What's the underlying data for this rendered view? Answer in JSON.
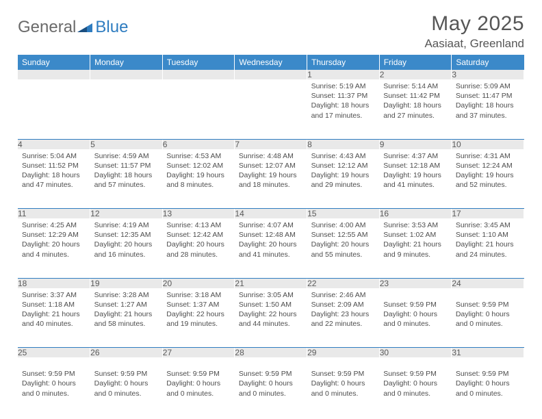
{
  "brand": {
    "general": "General",
    "blue": "Blue"
  },
  "title": "May 2025",
  "location": "Aasiaat, Greenland",
  "colors": {
    "header_bg": "#3b89c9",
    "header_text": "#ffffff",
    "rule": "#2e7cc0",
    "daynum_bg": "#e9e9e9",
    "body_text": "#4d4d4d",
    "title_text": "#565656",
    "logo_gray": "#6a6a6a",
    "logo_blue": "#2e7cc0"
  },
  "day_headers": [
    "Sunday",
    "Monday",
    "Tuesday",
    "Wednesday",
    "Thursday",
    "Friday",
    "Saturday"
  ],
  "weeks": [
    [
      {
        "n": "",
        "lines": []
      },
      {
        "n": "",
        "lines": []
      },
      {
        "n": "",
        "lines": []
      },
      {
        "n": "",
        "lines": []
      },
      {
        "n": "1",
        "lines": [
          "Sunrise: 5:19 AM",
          "Sunset: 11:37 PM",
          "Daylight: 18 hours and 17 minutes."
        ]
      },
      {
        "n": "2",
        "lines": [
          "Sunrise: 5:14 AM",
          "Sunset: 11:42 PM",
          "Daylight: 18 hours and 27 minutes."
        ]
      },
      {
        "n": "3",
        "lines": [
          "Sunrise: 5:09 AM",
          "Sunset: 11:47 PM",
          "Daylight: 18 hours and 37 minutes."
        ]
      }
    ],
    [
      {
        "n": "4",
        "lines": [
          "Sunrise: 5:04 AM",
          "Sunset: 11:52 PM",
          "Daylight: 18 hours and 47 minutes."
        ]
      },
      {
        "n": "5",
        "lines": [
          "Sunrise: 4:59 AM",
          "Sunset: 11:57 PM",
          "Daylight: 18 hours and 57 minutes."
        ]
      },
      {
        "n": "6",
        "lines": [
          "Sunrise: 4:53 AM",
          "Sunset: 12:02 AM",
          "Daylight: 19 hours and 8 minutes."
        ]
      },
      {
        "n": "7",
        "lines": [
          "Sunrise: 4:48 AM",
          "Sunset: 12:07 AM",
          "Daylight: 19 hours and 18 minutes."
        ]
      },
      {
        "n": "8",
        "lines": [
          "Sunrise: 4:43 AM",
          "Sunset: 12:12 AM",
          "Daylight: 19 hours and 29 minutes."
        ]
      },
      {
        "n": "9",
        "lines": [
          "Sunrise: 4:37 AM",
          "Sunset: 12:18 AM",
          "Daylight: 19 hours and 41 minutes."
        ]
      },
      {
        "n": "10",
        "lines": [
          "Sunrise: 4:31 AM",
          "Sunset: 12:24 AM",
          "Daylight: 19 hours and 52 minutes."
        ]
      }
    ],
    [
      {
        "n": "11",
        "lines": [
          "Sunrise: 4:25 AM",
          "Sunset: 12:29 AM",
          "Daylight: 20 hours and 4 minutes."
        ]
      },
      {
        "n": "12",
        "lines": [
          "Sunrise: 4:19 AM",
          "Sunset: 12:35 AM",
          "Daylight: 20 hours and 16 minutes."
        ]
      },
      {
        "n": "13",
        "lines": [
          "Sunrise: 4:13 AM",
          "Sunset: 12:42 AM",
          "Daylight: 20 hours and 28 minutes."
        ]
      },
      {
        "n": "14",
        "lines": [
          "Sunrise: 4:07 AM",
          "Sunset: 12:48 AM",
          "Daylight: 20 hours and 41 minutes."
        ]
      },
      {
        "n": "15",
        "lines": [
          "Sunrise: 4:00 AM",
          "Sunset: 12:55 AM",
          "Daylight: 20 hours and 55 minutes."
        ]
      },
      {
        "n": "16",
        "lines": [
          "Sunrise: 3:53 AM",
          "Sunset: 1:02 AM",
          "Daylight: 21 hours and 9 minutes."
        ]
      },
      {
        "n": "17",
        "lines": [
          "Sunrise: 3:45 AM",
          "Sunset: 1:10 AM",
          "Daylight: 21 hours and 24 minutes."
        ]
      }
    ],
    [
      {
        "n": "18",
        "lines": [
          "Sunrise: 3:37 AM",
          "Sunset: 1:18 AM",
          "Daylight: 21 hours and 40 minutes."
        ]
      },
      {
        "n": "19",
        "lines": [
          "Sunrise: 3:28 AM",
          "Sunset: 1:27 AM",
          "Daylight: 21 hours and 58 minutes."
        ]
      },
      {
        "n": "20",
        "lines": [
          "Sunrise: 3:18 AM",
          "Sunset: 1:37 AM",
          "Daylight: 22 hours and 19 minutes."
        ]
      },
      {
        "n": "21",
        "lines": [
          "Sunrise: 3:05 AM",
          "Sunset: 1:50 AM",
          "Daylight: 22 hours and 44 minutes."
        ]
      },
      {
        "n": "22",
        "lines": [
          "Sunrise: 2:46 AM",
          "Sunset: 2:09 AM",
          "Daylight: 23 hours and 22 minutes."
        ]
      },
      {
        "n": "23",
        "lines": [
          "",
          "Sunset: 9:59 PM",
          "Daylight: 0 hours and 0 minutes."
        ]
      },
      {
        "n": "24",
        "lines": [
          "",
          "Sunset: 9:59 PM",
          "Daylight: 0 hours and 0 minutes."
        ]
      }
    ],
    [
      {
        "n": "25",
        "lines": [
          "",
          "Sunset: 9:59 PM",
          "Daylight: 0 hours and 0 minutes."
        ]
      },
      {
        "n": "26",
        "lines": [
          "",
          "Sunset: 9:59 PM",
          "Daylight: 0 hours and 0 minutes."
        ]
      },
      {
        "n": "27",
        "lines": [
          "",
          "Sunset: 9:59 PM",
          "Daylight: 0 hours and 0 minutes."
        ]
      },
      {
        "n": "28",
        "lines": [
          "",
          "Sunset: 9:59 PM",
          "Daylight: 0 hours and 0 minutes."
        ]
      },
      {
        "n": "29",
        "lines": [
          "",
          "Sunset: 9:59 PM",
          "Daylight: 0 hours and 0 minutes."
        ]
      },
      {
        "n": "30",
        "lines": [
          "",
          "Sunset: 9:59 PM",
          "Daylight: 0 hours and 0 minutes."
        ]
      },
      {
        "n": "31",
        "lines": [
          "",
          "Sunset: 9:59 PM",
          "Daylight: 0 hours and 0 minutes."
        ]
      }
    ]
  ]
}
